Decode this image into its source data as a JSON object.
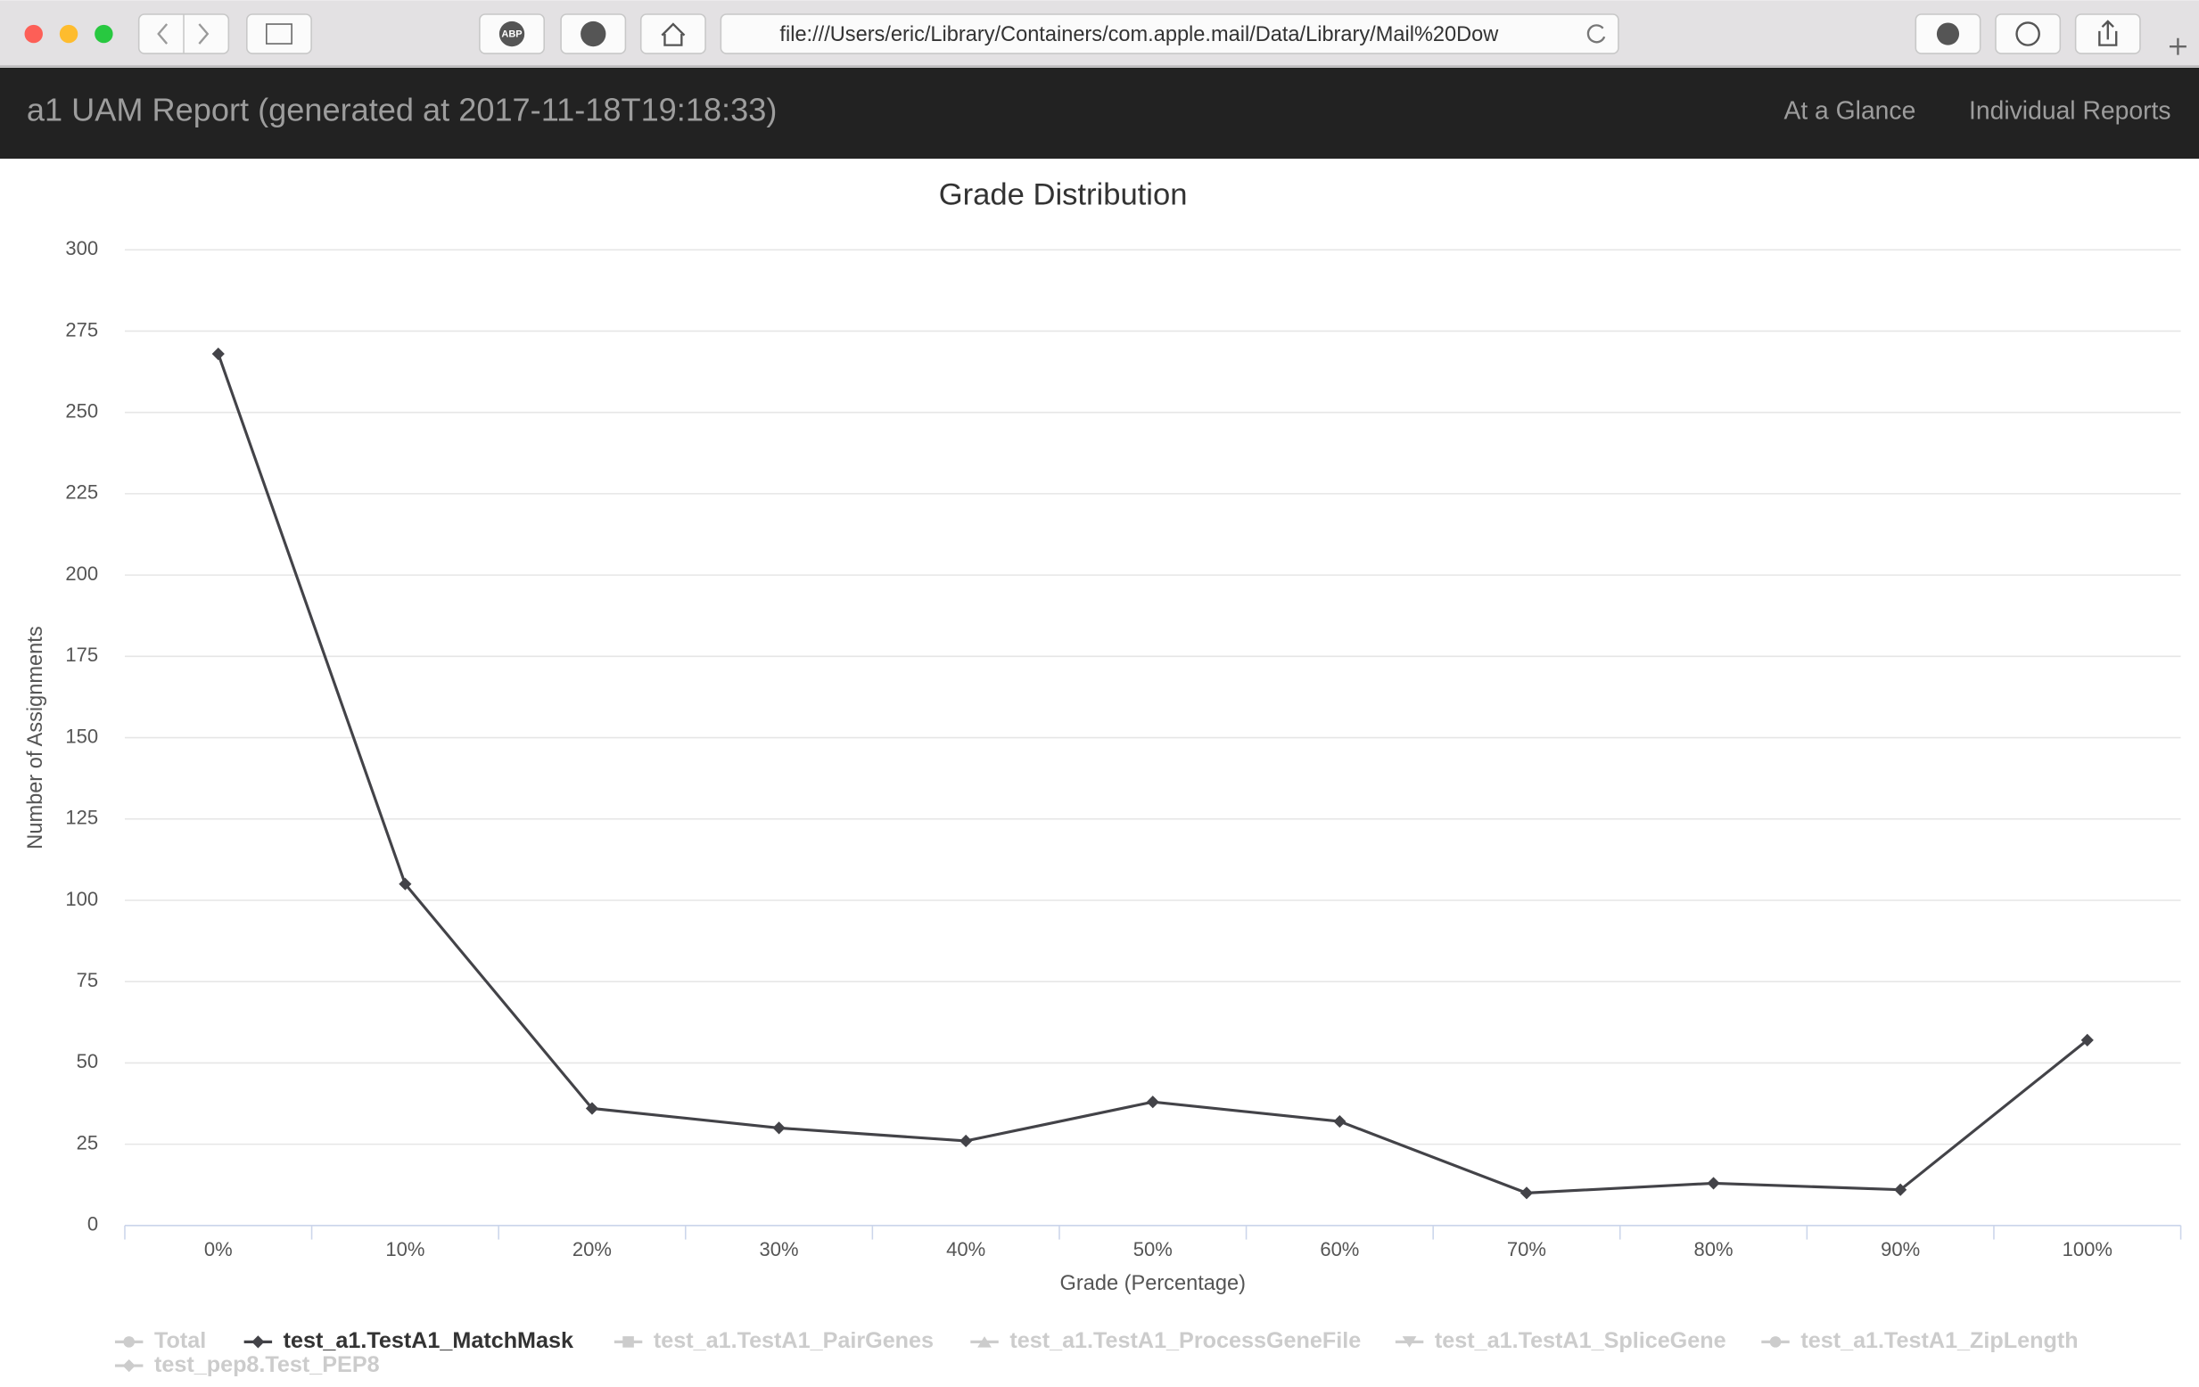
{
  "browser": {
    "url": "file:///Users/eric/Library/Containers/com.apple.mail/Data/Library/Mail%20Dow",
    "extension_label": "ABP"
  },
  "header": {
    "title": "a1 UAM Report (generated at 2017-11-18T19:18:33)",
    "nav": [
      "At a Glance",
      "Individual Reports"
    ]
  },
  "chart_data": {
    "type": "line",
    "title": "Grade Distribution",
    "x_label": "Grade (Percentage)",
    "y_label": "Number of Assignments",
    "categories": [
      "0%",
      "10%",
      "20%",
      "30%",
      "40%",
      "50%",
      "60%",
      "70%",
      "80%",
      "90%",
      "100%"
    ],
    "series": [
      {
        "name": "test_a1.TestA1_MatchMask",
        "color": "#434348",
        "values": [
          268,
          105,
          36,
          30,
          26,
          38,
          32,
          10,
          13,
          11,
          57
        ]
      }
    ],
    "hidden_series": [
      "Total",
      "test_a1.TestA1_PairGenes",
      "test_a1.TestA1_ProcessGeneFile",
      "test_a1.TestA1_SpliceGene",
      "test_a1.TestA1_ZipLength",
      "test_pep8.Test_PEP8"
    ],
    "ylim": [
      0,
      300
    ],
    "yticks": [
      0,
      25,
      50,
      75,
      100,
      125,
      150,
      175,
      200,
      225,
      250,
      275,
      300
    ],
    "grid": true
  }
}
